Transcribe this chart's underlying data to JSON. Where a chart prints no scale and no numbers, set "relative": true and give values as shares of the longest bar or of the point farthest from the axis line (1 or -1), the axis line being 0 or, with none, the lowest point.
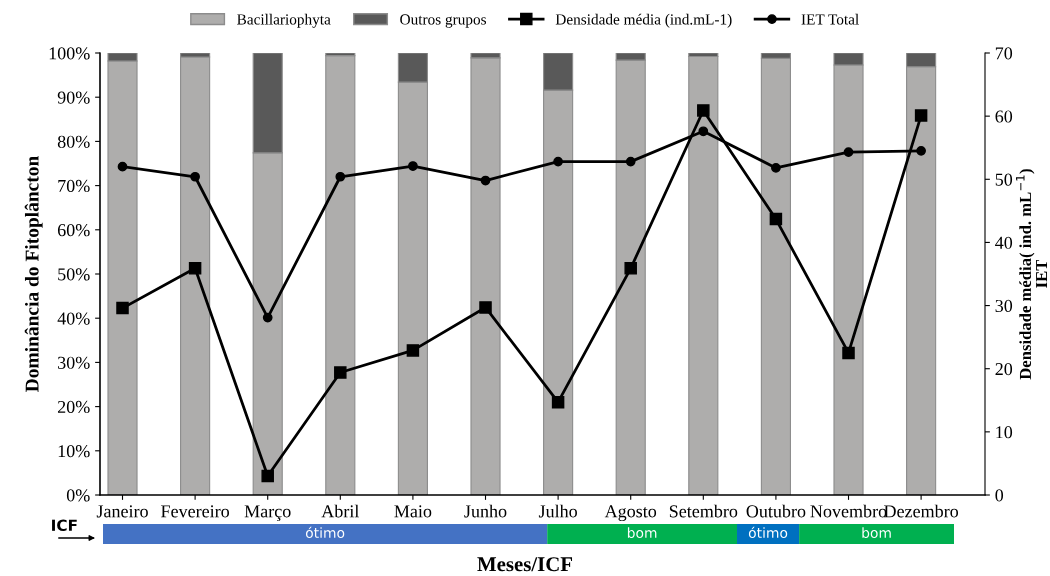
{
  "chart_data": [
    {
      "type": "bar",
      "stacked": true,
      "xlabel": "Meses/ICF",
      "ylabel": "Dominância do Fitoplâncton",
      "y2label": "Densidade média( ind. mL$^{−1}$)",
      "categories": [
        "Janeiro",
        "Fevereiro",
        "Março",
        "Abril",
        "Maio",
        "Junho",
        "Julho",
        "Agosto",
        "Setembro",
        "Outubro",
        "Novembro",
        "Dezembro"
      ],
      "series": [
        {
          "name": "Bacillariophyta",
          "color": "#aeadac",
          "values": [
            98.2,
            99.1,
            77.4,
            99.4,
            93.4,
            98.9,
            91.6,
            98.4,
            99.2,
            98.8,
            97.3,
            96.9
          ]
        },
        {
          "name": "Outros grupos",
          "color": "#595959",
          "values": [
            1.8,
            0.9,
            22.6,
            0.6,
            6.6,
            1.1,
            8.4,
            1.6,
            0.8,
            1.2,
            2.7,
            3.1
          ]
        },
        {
          "name": "Densidade média (ind.mL-1)",
          "type": "line",
          "axis": "y2",
          "marker": "square",
          "color": "#000000",
          "values": [
            29.6,
            35.9,
            3.0,
            19.4,
            22.9,
            29.7,
            14.7,
            35.9,
            60.9,
            43.7,
            22.5,
            60.1
          ]
        },
        {
          "name": "IET Total",
          "type": "line",
          "axis": "y2",
          "marker": "circle",
          "color": "#000000",
          "values": [
            52.0,
            50.4,
            28.1,
            50.4,
            52.1,
            49.8,
            52.8,
            52.8,
            57.6,
            51.8,
            54.3,
            54.5
          ]
        }
      ],
      "ylim": [
        0,
        100
      ],
      "yticks": [
        {
          "value": 0,
          "label": "0%"
        },
        {
          "value": 10,
          "label": "10%"
        },
        {
          "value": 20,
          "label": "20%"
        },
        {
          "value": 30,
          "label": "30%"
        },
        {
          "value": 40,
          "label": "40%"
        },
        {
          "value": 50,
          "label": "50%"
        },
        {
          "value": 60,
          "label": "60%"
        },
        {
          "value": 70,
          "label": "70%"
        },
        {
          "value": 80,
          "label": "80%"
        },
        {
          "value": 90,
          "label": "90%"
        },
        {
          "value": 100,
          "label": "100%"
        }
      ],
      "y2lim": [
        0,
        70
      ],
      "y2ticks": [
        0,
        10,
        20,
        30,
        40,
        50,
        60,
        70
      ],
      "annotations": [
        "IET"
      ],
      "legend": "top"
    },
    {
      "type": "bar",
      "orientation": "horizontal",
      "stacked": true,
      "relative": true,
      "categories": [
        "ICF"
      ],
      "series": [
        {
          "name": "ótimo",
          "color": "#4472c4",
          "values": [
            0.522
          ]
        },
        {
          "name": "bom",
          "color": "#00b050",
          "values": [
            0.223
          ]
        },
        {
          "name": "ótimo",
          "color": "#0070c0",
          "values": [
            0.073
          ]
        },
        {
          "name": "bom",
          "color": "#00b050",
          "values": [
            0.182
          ]
        }
      ]
    }
  ]
}
